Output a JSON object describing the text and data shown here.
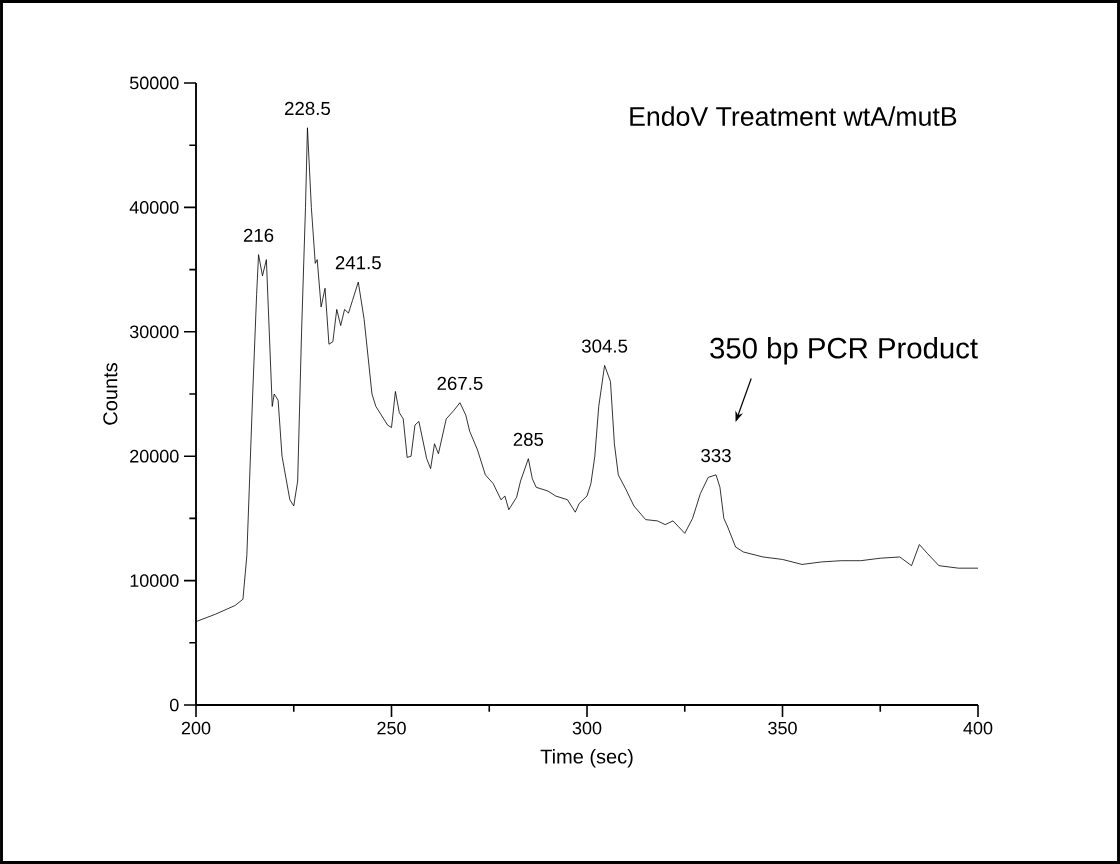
{
  "chart_data": {
    "type": "line",
    "title": "EndoV Treatment wtA/mutB",
    "xlabel": "Time (sec)",
    "ylabel": "Counts",
    "xlim": [
      200,
      400
    ],
    "ylim": [
      0,
      50000
    ],
    "xticks": [
      200,
      250,
      300,
      350,
      400
    ],
    "yticks": [
      0,
      10000,
      20000,
      30000,
      40000,
      50000
    ],
    "grid": false,
    "marker": "none",
    "line_style": "solid",
    "series": [
      {
        "color": "#000000",
        "x": [
          200,
          205,
          210,
          212,
          213,
          214.5,
          215.5,
          216,
          217,
          218,
          219.5,
          220,
          221,
          222,
          224,
          225,
          226,
          227,
          228,
          228.5,
          229.5,
          230.5,
          231,
          232,
          233,
          234,
          235,
          236,
          237,
          238,
          239,
          240,
          241.5,
          243,
          244,
          245,
          246,
          247,
          249,
          250,
          251,
          252,
          253,
          254,
          255,
          256,
          257,
          259,
          260,
          261,
          262,
          264,
          266,
          267.5,
          269,
          270,
          272,
          274,
          276,
          278,
          279,
          280,
          282,
          283,
          285,
          286,
          287,
          290,
          292,
          295,
          297,
          298,
          300,
          301,
          302,
          303,
          304.5,
          306,
          307,
          308,
          310,
          312,
          315,
          318,
          320,
          322,
          325,
          327,
          329,
          331,
          333,
          334,
          335,
          336,
          338,
          340,
          345,
          350,
          355,
          360,
          365,
          370,
          375,
          380,
          383,
          385,
          387,
          390,
          395,
          400
        ],
        "values": [
          6700,
          7300,
          8000,
          8500,
          12000,
          25000,
          33000,
          36200,
          34500,
          35800,
          24000,
          25000,
          24500,
          20000,
          16500,
          16000,
          18000,
          30000,
          40000,
          46400,
          40000,
          35500,
          35800,
          32000,
          33500,
          29000,
          29200,
          31800,
          30500,
          31800,
          31500,
          32500,
          34000,
          31000,
          28000,
          25000,
          24000,
          23500,
          22500,
          22300,
          25200,
          23500,
          23000,
          19900,
          20000,
          22500,
          22800,
          19800,
          19000,
          21000,
          20200,
          23000,
          23700,
          24300,
          23300,
          22000,
          20500,
          18500,
          17800,
          16500,
          16800,
          15700,
          16700,
          18000,
          19800,
          18200,
          17500,
          17200,
          16800,
          16500,
          15500,
          16200,
          16800,
          17800,
          20000,
          24000,
          27300,
          26000,
          21000,
          18500,
          17300,
          16000,
          14900,
          14800,
          14500,
          14800,
          13800,
          15000,
          17000,
          18300,
          18500,
          17500,
          15000,
          14300,
          12700,
          12300,
          11900,
          11700,
          11300,
          11500,
          11600,
          11600,
          11800,
          11900,
          11200,
          12900,
          12200,
          11200,
          11000,
          11000
        ]
      }
    ],
    "annotations": [
      {
        "text": "216",
        "x": 216,
        "y": 36200
      },
      {
        "text": "228.5",
        "x": 228.5,
        "y": 46400
      },
      {
        "text": "241.5",
        "x": 241.5,
        "y": 34000
      },
      {
        "text": "267.5",
        "x": 267.5,
        "y": 24300
      },
      {
        "text": "285",
        "x": 285,
        "y": 19800
      },
      {
        "text": "304.5",
        "x": 304.5,
        "y": 27300
      },
      {
        "text": "333",
        "x": 333,
        "y": 18500
      },
      "350 bp PCR Product"
    ]
  }
}
